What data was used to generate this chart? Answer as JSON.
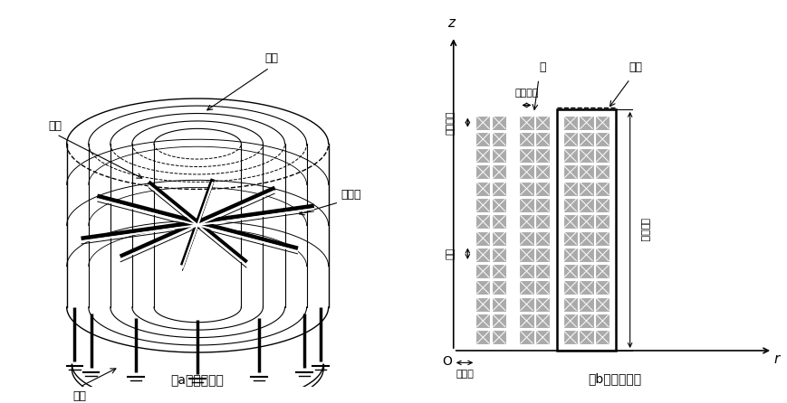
{
  "title_a": "（a）三维模型",
  "title_b": "（b）二维模型",
  "labels_3d": {
    "qidao": "气道",
    "chengtiao": "撑条",
    "xingxingjia": "星形架",
    "baofeng": "包封"
  },
  "labels_2d": {
    "z_axis": "z",
    "r_axis": "r",
    "origin": "O",
    "jingxiang_bianchang": "径向边长",
    "zhougxiang_bianchang": "轴向边长",
    "jiejv": "节距",
    "banjing": "半内径",
    "ceng": "层",
    "baofeng": "包封",
    "baofeng_gaodu": "包封高度"
  },
  "bg_color": "#ffffff",
  "line_color": "#000000",
  "coil_fill": "#aaaaaa",
  "coil_fill2": "#bbbbbb"
}
